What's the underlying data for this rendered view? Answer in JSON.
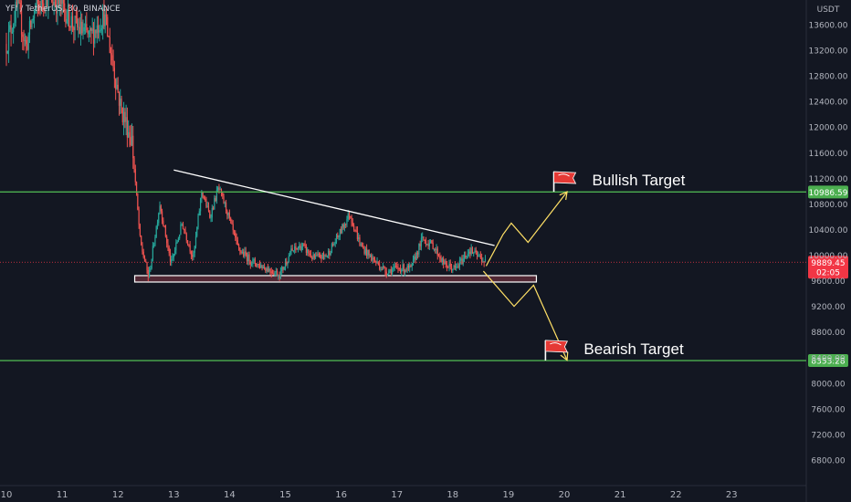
{
  "chart_data": {
    "type": "candlestick",
    "title": "YFI / TetherUS, 30, BINANCE",
    "currency": "USDT",
    "ylim": [
      6600,
      14000
    ],
    "xlim": [
      10,
      23.1
    ],
    "y_ticks": [
      "13600.00",
      "13200.00",
      "12800.00",
      "12400.00",
      "12000.00",
      "11600.00",
      "11200.00",
      "10800.00",
      "10400.00",
      "10000.00",
      "9600.00",
      "9200.00",
      "8800.00",
      "8400.00",
      "8000.00",
      "7600.00",
      "7200.00",
      "6800.00"
    ],
    "x_ticks": [
      "10",
      "11",
      "12",
      "13",
      "14",
      "15",
      "16",
      "17",
      "18",
      "19",
      "20",
      "21",
      "22",
      "23"
    ],
    "last_price": {
      "value": 9889.45,
      "label": "9889.45",
      "countdown": "02:05"
    },
    "levels": [
      {
        "value": 10986.59,
        "label": "10986.59"
      },
      {
        "value": 8353.28,
        "label": "8353.28"
      }
    ],
    "support_zone": {
      "x": [
        12.3,
        19.5
      ],
      "y": [
        9580,
        9680
      ]
    },
    "trendline": {
      "x": [
        13.0,
        18.75
      ],
      "y": [
        11330,
        10150
      ]
    },
    "projections": [
      {
        "name": "bullish",
        "x": [
          18.6,
          18.9,
          19.05,
          19.35,
          20.05
        ],
        "y": [
          9830,
          10320,
          10500,
          10200,
          10990
        ]
      },
      {
        "name": "bearish",
        "x": [
          18.55,
          19.1,
          19.45,
          20.05
        ],
        "y": [
          9750,
          9200,
          9530,
          8360
        ]
      }
    ],
    "annotations": [
      {
        "text": "Bullish Target",
        "x": 20.5,
        "y": 11090
      },
      {
        "text": "Bearish Target",
        "x": 20.35,
        "y": 8455
      }
    ],
    "colors": {
      "background": "#131722",
      "up": "#26a69a",
      "down": "#ef5350",
      "level": "#4caf50",
      "projection": "#ffe066",
      "trendline": "#ffffff",
      "zone_fill": "#5d2a37",
      "last_price": "#f23645",
      "flag": "#e53935"
    },
    "key_points": [
      {
        "x": 10.0,
        "y": 13300
      },
      {
        "x": 10.2,
        "y": 13900
      },
      {
        "x": 10.35,
        "y": 13250
      },
      {
        "x": 10.5,
        "y": 13800
      },
      {
        "x": 10.7,
        "y": 14050
      },
      {
        "x": 11.0,
        "y": 13900
      },
      {
        "x": 11.2,
        "y": 13600
      },
      {
        "x": 11.5,
        "y": 13400
      },
      {
        "x": 11.75,
        "y": 13750
      },
      {
        "x": 11.95,
        "y": 12800
      },
      {
        "x": 12.05,
        "y": 12300
      },
      {
        "x": 12.25,
        "y": 11800
      },
      {
        "x": 12.4,
        "y": 10200
      },
      {
        "x": 12.55,
        "y": 9650
      },
      {
        "x": 12.75,
        "y": 10800
      },
      {
        "x": 12.95,
        "y": 9850
      },
      {
        "x": 13.15,
        "y": 10500
      },
      {
        "x": 13.35,
        "y": 9950
      },
      {
        "x": 13.5,
        "y": 11000
      },
      {
        "x": 13.65,
        "y": 10600
      },
      {
        "x": 13.8,
        "y": 11050
      },
      {
        "x": 13.95,
        "y": 10700
      },
      {
        "x": 14.15,
        "y": 10100
      },
      {
        "x": 14.4,
        "y": 9900
      },
      {
        "x": 14.7,
        "y": 9780
      },
      {
        "x": 14.9,
        "y": 9700
      },
      {
        "x": 15.1,
        "y": 10050
      },
      {
        "x": 15.3,
        "y": 10150
      },
      {
        "x": 15.5,
        "y": 9950
      },
      {
        "x": 15.75,
        "y": 10000
      },
      {
        "x": 15.95,
        "y": 10300
      },
      {
        "x": 16.15,
        "y": 10650
      },
      {
        "x": 16.35,
        "y": 10150
      },
      {
        "x": 16.55,
        "y": 9950
      },
      {
        "x": 16.8,
        "y": 9750
      },
      {
        "x": 17.05,
        "y": 9800
      },
      {
        "x": 17.25,
        "y": 9780
      },
      {
        "x": 17.45,
        "y": 10250
      },
      {
        "x": 17.65,
        "y": 10150
      },
      {
        "x": 17.85,
        "y": 9850
      },
      {
        "x": 18.05,
        "y": 9780
      },
      {
        "x": 18.3,
        "y": 10080
      },
      {
        "x": 18.5,
        "y": 9950
      },
      {
        "x": 18.6,
        "y": 9880
      }
    ]
  }
}
